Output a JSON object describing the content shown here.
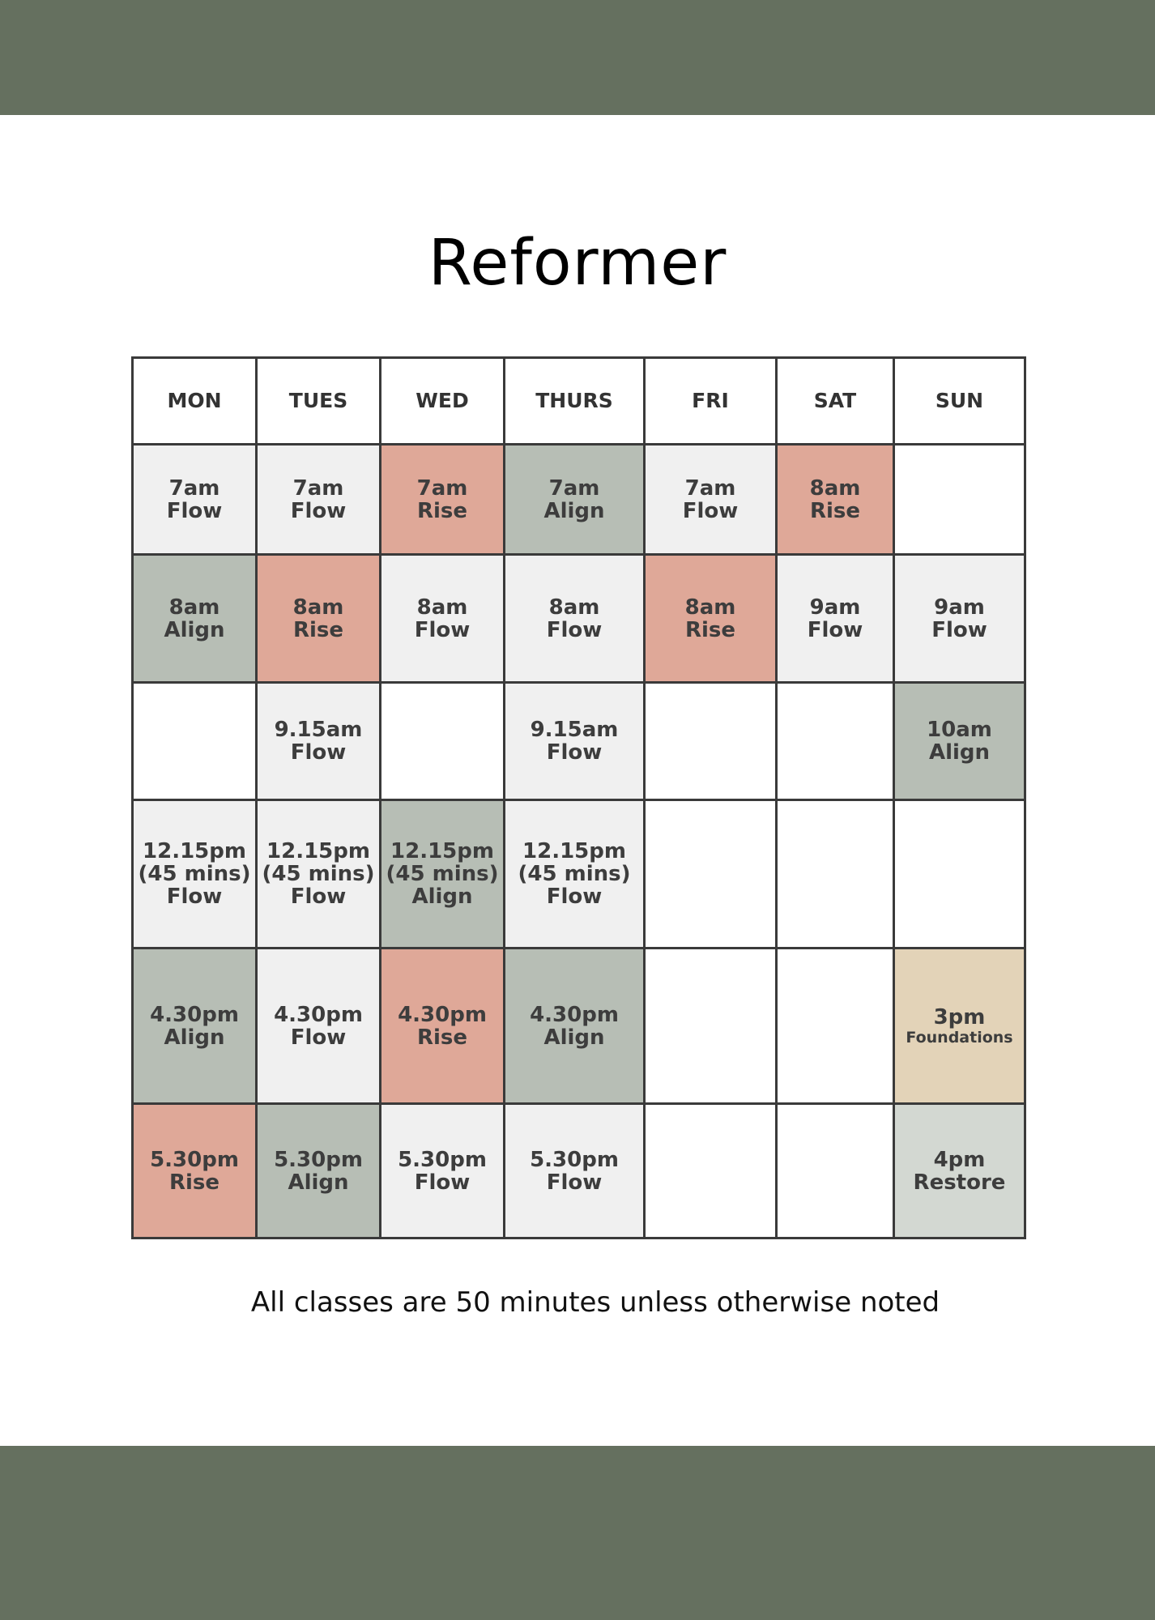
{
  "title": "Reformer",
  "days": [
    "MON",
    "TUES",
    "WED",
    "THURS",
    "FRI",
    "SAT",
    "SUN"
  ],
  "colors": {
    "header_band": "#65705f",
    "light_grey": "#f0f0f0",
    "salmon": "#dfa898",
    "sage": "#b7beb5",
    "sand": "#e3d3b8",
    "light_sage": "#d3d8d2"
  },
  "rows": [
    [
      {
        "text": "7am\nFlow",
        "color": "grey"
      },
      {
        "text": "7am\nFlow",
        "color": "grey"
      },
      {
        "text": "7am\nRise",
        "color": "salmon"
      },
      {
        "text": "7am\nAlign",
        "color": "sage"
      },
      {
        "text": "7am\nFlow",
        "color": "grey"
      },
      {
        "text": "8am\nRise",
        "color": "salmon"
      },
      {
        "text": "",
        "color": "white"
      }
    ],
    [
      {
        "text": "8am\nAlign",
        "color": "sage"
      },
      {
        "text": "8am\nRise",
        "color": "salmon"
      },
      {
        "text": "8am\nFlow",
        "color": "grey"
      },
      {
        "text": "8am\nFlow",
        "color": "grey"
      },
      {
        "text": "8am\nRise",
        "color": "salmon"
      },
      {
        "text": "9am\nFlow",
        "color": "grey"
      },
      {
        "text": "9am\nFlow",
        "color": "grey"
      }
    ],
    [
      {
        "text": "",
        "color": "white"
      },
      {
        "text": "9.15am\nFlow",
        "color": "grey"
      },
      {
        "text": "",
        "color": "white"
      },
      {
        "text": "9.15am\nFlow",
        "color": "grey"
      },
      {
        "text": "",
        "color": "white"
      },
      {
        "text": "",
        "color": "white"
      },
      {
        "text": "10am\nAlign",
        "color": "sage"
      }
    ],
    [
      {
        "text": "12.15pm\n(45 mins)\nFlow",
        "color": "grey"
      },
      {
        "text": "12.15pm\n(45 mins)\nFlow",
        "color": "grey"
      },
      {
        "text": "12.15pm\n(45 mins)\nAlign",
        "color": "sage"
      },
      {
        "text": "12.15pm\n(45 mins)\nFlow",
        "color": "grey"
      },
      {
        "text": "",
        "color": "white"
      },
      {
        "text": "",
        "color": "white"
      },
      {
        "text": "",
        "color": "white"
      }
    ],
    [
      {
        "text": "4.30pm\nAlign",
        "color": "sage"
      },
      {
        "text": "4.30pm\nFlow",
        "color": "grey"
      },
      {
        "text": "4.30pm\nRise",
        "color": "salmon"
      },
      {
        "text": "4.30pm\nAlign",
        "color": "sage"
      },
      {
        "text": "",
        "color": "white"
      },
      {
        "text": "",
        "color": "white"
      },
      {
        "text": "3pm",
        "sub": "Foundations",
        "color": "sand"
      }
    ],
    [
      {
        "text": "5.30pm\nRise",
        "color": "salmon"
      },
      {
        "text": "5.30pm\nAlign",
        "color": "sage"
      },
      {
        "text": "5.30pm\nFlow",
        "color": "grey"
      },
      {
        "text": "5.30pm\nFlow",
        "color": "grey"
      },
      {
        "text": "",
        "color": "white"
      },
      {
        "text": "",
        "color": "white"
      },
      {
        "text": "4pm\nRestore",
        "color": "light_sage"
      }
    ]
  ],
  "note": "All classes are 50 minutes unless otherwise noted"
}
